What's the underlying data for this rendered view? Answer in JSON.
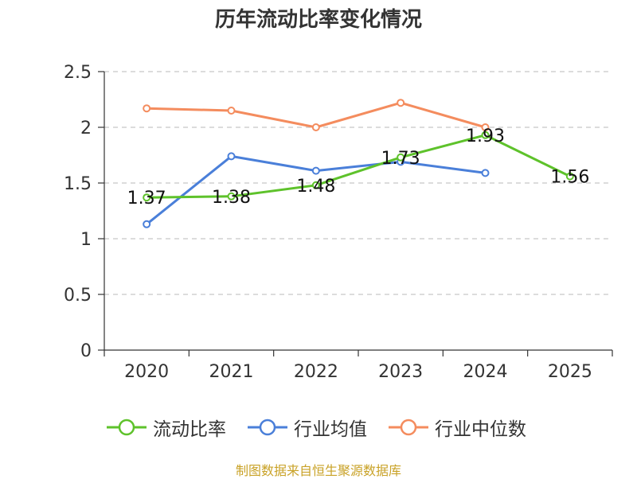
{
  "title": "历年流动比率变化情况",
  "source": "制图数据来自恒生聚源数据库",
  "chart_data": {
    "type": "line",
    "title": "历年流动比率变化情况",
    "categories": [
      "2020",
      "2021",
      "2022",
      "2023",
      "2024",
      "2025"
    ],
    "ylim": [
      0,
      2.5
    ],
    "yticks": [
      "0",
      "0.5",
      "1",
      "1.5",
      "2",
      "2.5"
    ],
    "grid": true,
    "legend_position": "bottom",
    "series": [
      {
        "name": "流动比率",
        "color": "#5ec22b",
        "values": [
          1.37,
          1.38,
          1.48,
          1.73,
          1.93,
          1.56
        ],
        "labels": [
          "1.37",
          "1.38",
          "1.48",
          "1.73",
          "1.93",
          "1.56"
        ]
      },
      {
        "name": "行业均值",
        "color": "#4a7fd9",
        "values": [
          1.13,
          1.74,
          1.61,
          1.69,
          1.59,
          null
        ]
      },
      {
        "name": "行业中位数",
        "color": "#f48c5e",
        "values": [
          2.17,
          2.15,
          2.0,
          2.22,
          2.0,
          null
        ]
      }
    ]
  }
}
